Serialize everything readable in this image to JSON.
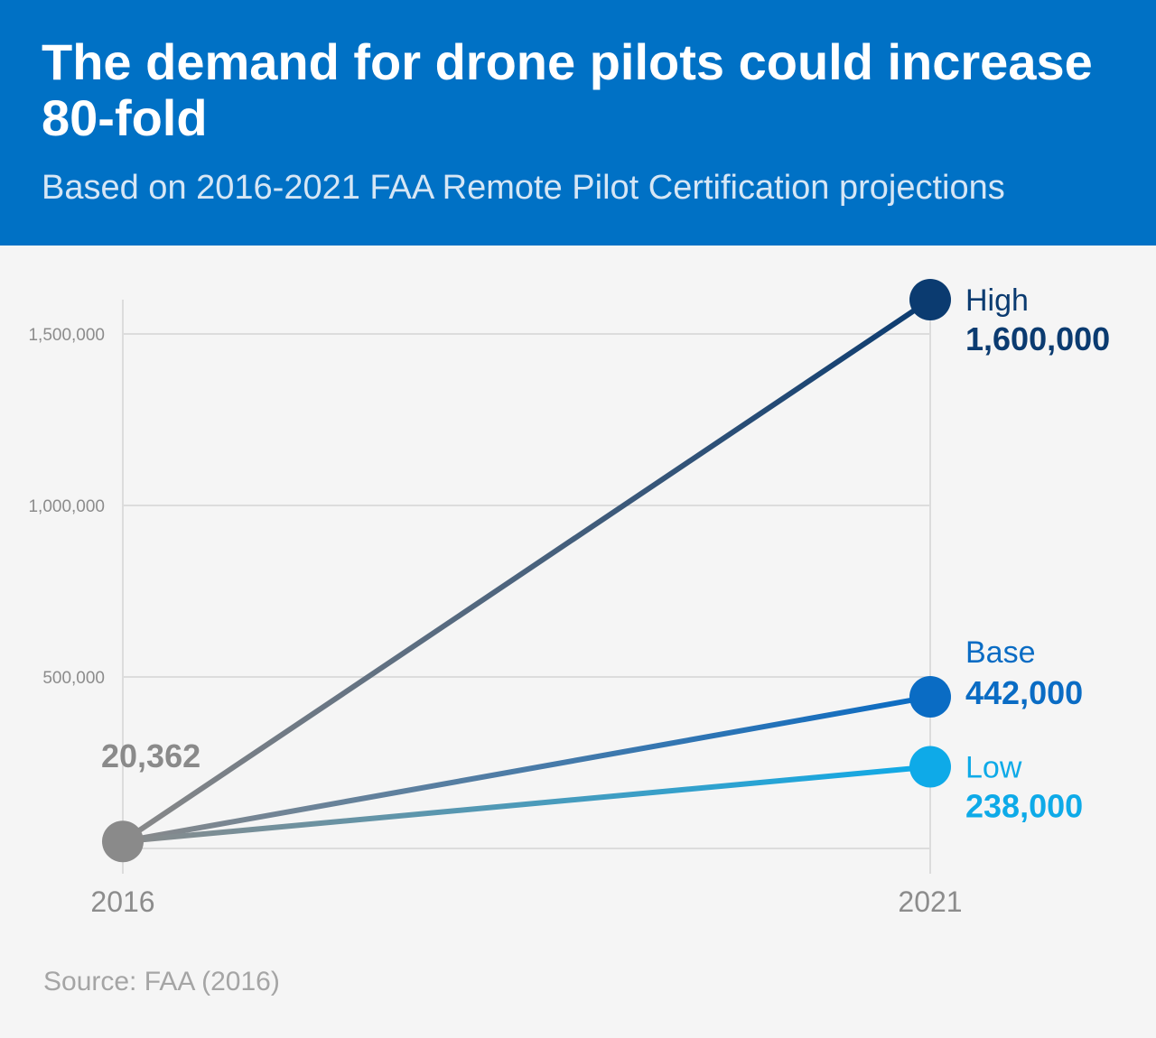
{
  "header": {
    "title": "The demand for drone pilots could increase 80-fold",
    "subtitle": "Based on 2016-2021 FAA Remote Pilot Certification projections"
  },
  "footer": {
    "source": "Source: FAA (2016)"
  },
  "colors": {
    "header_bg": "#0071c5",
    "start_point": "#8a8a8a",
    "high": "#0b3b70",
    "base": "#0a6cc4",
    "low": "#0eaae8",
    "grid": "#dcdcdc",
    "axis_text": "#8c8c8c"
  },
  "chart_data": {
    "type": "line",
    "title": "The demand for drone pilots could increase 80-fold",
    "subtitle": "Based on 2016-2021 FAA Remote Pilot Certification projections",
    "x": [
      "2016",
      "2021"
    ],
    "ylim": [
      0,
      1600000
    ],
    "yticks": [
      500000,
      1000000,
      1500000
    ],
    "ytick_labels": [
      "500,000",
      "1,000,000",
      "1,500,000"
    ],
    "grid": true,
    "start": {
      "x": "2016",
      "value": 20362,
      "label": "20,362"
    },
    "series": [
      {
        "name": "High",
        "values": [
          20362,
          1600000
        ],
        "end_label": "1,600,000",
        "color": "#0b3b70"
      },
      {
        "name": "Base",
        "values": [
          20362,
          442000
        ],
        "end_label": "442,000",
        "color": "#0a6cc4"
      },
      {
        "name": "Low",
        "values": [
          20362,
          238000
        ],
        "end_label": "238,000",
        "color": "#0eaae8"
      }
    ]
  }
}
